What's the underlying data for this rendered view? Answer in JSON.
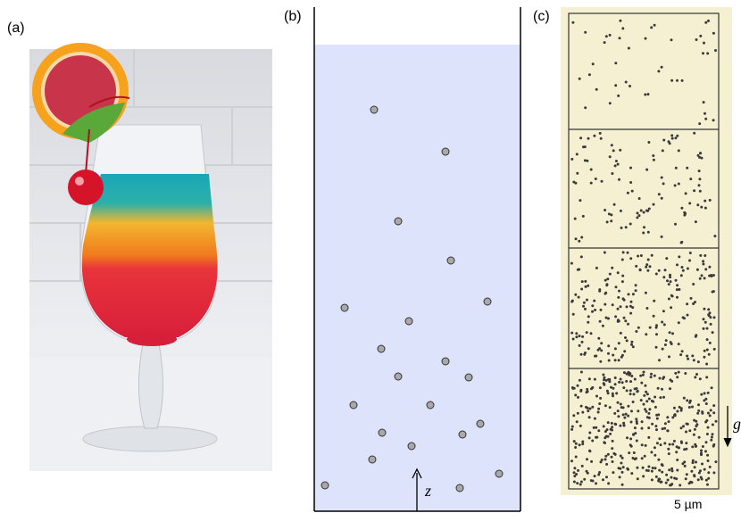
{
  "panels": [
    {
      "label": "(a)"
    },
    {
      "label": "(b)",
      "axis_label": "z"
    },
    {
      "label": "(c)",
      "gravity_label": "g",
      "scale_label": "5 µm"
    }
  ]
}
